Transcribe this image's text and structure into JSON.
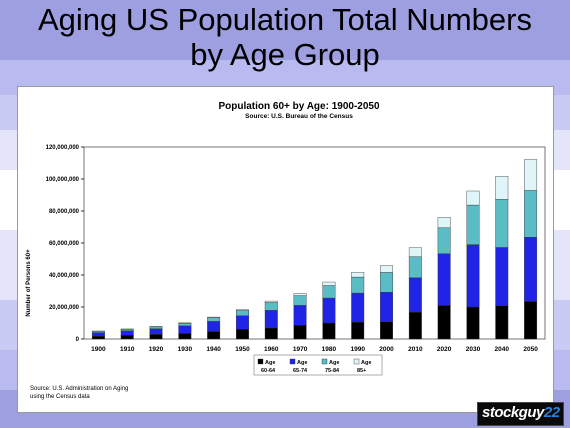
{
  "slide": {
    "title_line1": "Aging US Population Total Numbers",
    "title_line2": "by Age Group",
    "source_note": "Source: U.S. Administration on Aging using the Census data",
    "logo_text": "stockguy",
    "logo_number": "22"
  },
  "chart_data": {
    "type": "bar",
    "stacked": true,
    "title": "Population 60+ by Age: 1900-2050",
    "subtitle": "Source: U.S. Bureau of the Census",
    "xlabel": "",
    "ylabel": "Number of Persons 60+",
    "ylim": [
      0,
      120000000
    ],
    "yticks": [
      "0",
      "20,000,000",
      "40,000,000",
      "60,000,000",
      "80,000,000",
      "100,000,000",
      "120,000,000"
    ],
    "categories": [
      "1900",
      "1910",
      "1920",
      "1930",
      "1940",
      "1950",
      "1960",
      "1970",
      "1980",
      "1990",
      "2000",
      "2010",
      "2020",
      "2030",
      "2040",
      "2050"
    ],
    "series": [
      {
        "name": "Age 60-64",
        "color": "#000000",
        "values": [
          1800000,
          2300000,
          2900000,
          3500000,
          4700000,
          6100000,
          6900000,
          8600000,
          10000000,
          10600000,
          10800000,
          16800000,
          21000000,
          20000000,
          20800000,
          23500000
        ]
      },
      {
        "name": "Age 65-74",
        "color": "#1f24e6",
        "values": [
          2200000,
          2800000,
          3500000,
          4700000,
          6300000,
          8400000,
          11000000,
          12400000,
          15600000,
          18100000,
          18400000,
          21500000,
          32300000,
          39000000,
          36400000,
          40100000
        ]
      },
      {
        "name": "Age 75-84",
        "color": "#5abcc4",
        "values": [
          900000,
          1000000,
          1200000,
          1600000,
          2300000,
          3300000,
          4900000,
          6100000,
          7800000,
          10000000,
          12400000,
          13100000,
          16200000,
          24700000,
          30100000,
          29200000
        ]
      },
      {
        "name": "Age 85+",
        "color": "#dff5f8",
        "values": [
          100000,
          200000,
          200000,
          300000,
          400000,
          600000,
          900000,
          1500000,
          2200000,
          3000000,
          4300000,
          5700000,
          6600000,
          8800000,
          14400000,
          19400000
        ]
      }
    ],
    "legend_position": "bottom",
    "grid": false
  }
}
